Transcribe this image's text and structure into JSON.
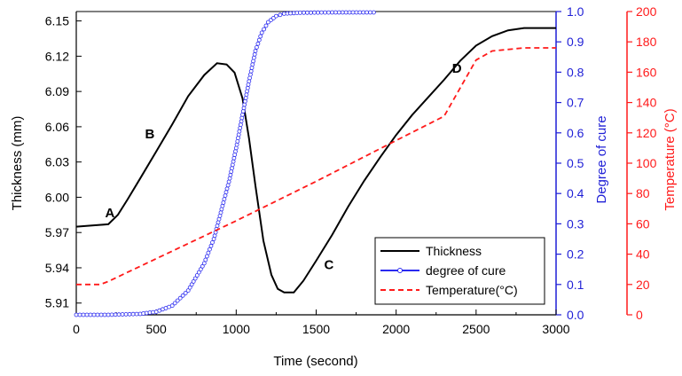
{
  "chart_data": {
    "type": "line",
    "title": "",
    "xlabel": "Time (second)",
    "xlim": [
      0,
      3000
    ],
    "x_ticks": [
      0,
      500,
      1000,
      1500,
      2000,
      2500,
      3000
    ],
    "axes": {
      "left": {
        "label": "Thickness (mm)",
        "range": [
          5.9,
          6.158
        ],
        "ticks": [
          "5.91",
          "5.94",
          "5.97",
          "6.00",
          "6.03",
          "6.06",
          "6.09",
          "6.12",
          "6.15"
        ],
        "color": "#000000"
      },
      "right_inner": {
        "label": "Degree of cure",
        "range": [
          0.0,
          1.0
        ],
        "ticks": [
          "0.0",
          "0.1",
          "0.2",
          "0.3",
          "0.4",
          "0.5",
          "0.6",
          "0.7",
          "0.8",
          "0.9",
          "1.0"
        ],
        "color": "#1f1fd6"
      },
      "right_outer": {
        "label": "Temperature (°C)",
        "range": [
          0,
          200
        ],
        "ticks": [
          "0",
          "20",
          "40",
          "60",
          "80",
          "100",
          "120",
          "140",
          "160",
          "180",
          "200"
        ],
        "color": "#ff1a1a"
      }
    },
    "legend": {
      "position": "bottom-right",
      "entries": [
        "Thickness",
        "degree of cure",
        "Temperature(°C)"
      ]
    },
    "series": [
      {
        "name": "Thickness",
        "axis": "left",
        "style": "solid",
        "color": "#000000",
        "points": [
          [
            0,
            5.975
          ],
          [
            100,
            5.976
          ],
          [
            200,
            5.977
          ],
          [
            260,
            5.985
          ],
          [
            320,
            5.998
          ],
          [
            400,
            6.016
          ],
          [
            500,
            6.039
          ],
          [
            600,
            6.062
          ],
          [
            700,
            6.086
          ],
          [
            800,
            6.104
          ],
          [
            880,
            6.114
          ],
          [
            940,
            6.113
          ],
          [
            990,
            6.106
          ],
          [
            1040,
            6.084
          ],
          [
            1080,
            6.05
          ],
          [
            1120,
            6.01
          ],
          [
            1170,
            5.963
          ],
          [
            1220,
            5.934
          ],
          [
            1260,
            5.922
          ],
          [
            1300,
            5.919
          ],
          [
            1360,
            5.919
          ],
          [
            1420,
            5.929
          ],
          [
            1500,
            5.946
          ],
          [
            1600,
            5.968
          ],
          [
            1700,
            5.992
          ],
          [
            1800,
            6.014
          ],
          [
            1900,
            6.034
          ],
          [
            2000,
            6.053
          ],
          [
            2100,
            6.07
          ],
          [
            2200,
            6.085
          ],
          [
            2300,
            6.1
          ],
          [
            2400,
            6.116
          ],
          [
            2500,
            6.129
          ],
          [
            2600,
            6.137
          ],
          [
            2700,
            6.142
          ],
          [
            2800,
            6.144
          ],
          [
            2900,
            6.144
          ],
          [
            3000,
            6.144
          ]
        ]
      },
      {
        "name": "degree of cure",
        "axis": "right_inner",
        "style": "solid-markers",
        "color": "#2a2af0",
        "points": [
          [
            0,
            0.0
          ],
          [
            200,
            0.0
          ],
          [
            400,
            0.003
          ],
          [
            500,
            0.01
          ],
          [
            600,
            0.03
          ],
          [
            700,
            0.08
          ],
          [
            800,
            0.17
          ],
          [
            860,
            0.25
          ],
          [
            920,
            0.37
          ],
          [
            960,
            0.45
          ],
          [
            1000,
            0.55
          ],
          [
            1040,
            0.66
          ],
          [
            1080,
            0.77
          ],
          [
            1120,
            0.87
          ],
          [
            1160,
            0.93
          ],
          [
            1200,
            0.965
          ],
          [
            1250,
            0.985
          ],
          [
            1300,
            0.993
          ],
          [
            1400,
            0.996
          ],
          [
            1600,
            0.997
          ],
          [
            1860,
            0.997
          ]
        ]
      },
      {
        "name": "Temperature(°C)",
        "axis": "right_outer",
        "style": "dashed",
        "color": "#ff1a1a",
        "points": [
          [
            0,
            20
          ],
          [
            150,
            20
          ],
          [
            200,
            22
          ],
          [
            300,
            27
          ],
          [
            500,
            37
          ],
          [
            1000,
            62
          ],
          [
            1500,
            88
          ],
          [
            2000,
            115
          ],
          [
            2300,
            131
          ],
          [
            2500,
            168
          ],
          [
            2600,
            174
          ],
          [
            2800,
            176
          ],
          [
            3000,
            176
          ]
        ]
      }
    ],
    "annotations": [
      {
        "text": "A",
        "x": 210,
        "y": 5.983,
        "axis": "left"
      },
      {
        "text": "B",
        "x": 460,
        "y": 6.05,
        "axis": "left"
      },
      {
        "text": "C",
        "x": 1580,
        "y": 5.939,
        "axis": "left"
      },
      {
        "text": "D",
        "x": 2380,
        "y": 6.106,
        "axis": "left"
      }
    ]
  }
}
